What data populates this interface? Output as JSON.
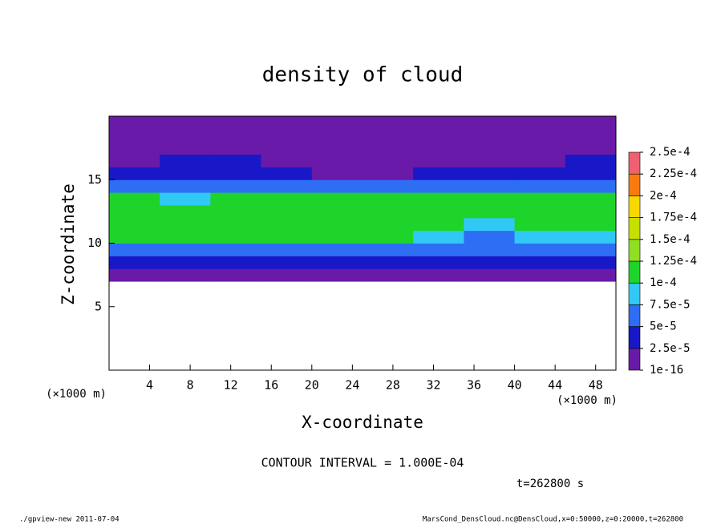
{
  "chart_data": {
    "type": "contour",
    "title": "density of cloud",
    "x_label": "X-coordinate",
    "y_label": "Z-coordinate",
    "x_unit": "(×1000 m)",
    "y_unit": "(×1000 m)",
    "xlim": [
      0,
      50
    ],
    "ylim": [
      0,
      20
    ],
    "xticks": [
      4,
      8,
      12,
      16,
      20,
      24,
      28,
      32,
      36,
      40,
      44,
      48
    ],
    "yticks": [
      5,
      10,
      15
    ],
    "x_bins": [
      0,
      5,
      10,
      15,
      20,
      25,
      30,
      35,
      40,
      45,
      50
    ],
    "z_bins": [
      7,
      8,
      9,
      10,
      11,
      12,
      13,
      14,
      15,
      16,
      17,
      18,
      19,
      20
    ],
    "values": [
      [
        2e-05,
        2e-05,
        2e-05,
        2e-05,
        2e-05,
        2e-05,
        2e-05,
        2e-05,
        2e-05,
        2e-05
      ],
      [
        4e-05,
        4e-05,
        4e-05,
        4e-05,
        4e-05,
        4e-05,
        3e-05,
        3e-05,
        4e-05,
        4e-05
      ],
      [
        7e-05,
        7e-05,
        7e-05,
        7e-05,
        7e-05,
        7e-05,
        6e-05,
        5e-05,
        6e-05,
        7e-05
      ],
      [
        0.00011,
        0.0001,
        0.0001,
        0.0001,
        0.0001,
        0.0001,
        9e-05,
        6e-05,
        8e-05,
        8e-05
      ],
      [
        0.00012,
        0.00012,
        0.00011,
        0.00012,
        0.00012,
        0.00011,
        0.0001,
        8e-05,
        0.0001,
        0.00011
      ],
      [
        0.00012,
        0.00011,
        0.00012,
        0.00012,
        0.00012,
        0.00011,
        0.00011,
        0.0001,
        0.00011,
        0.00012
      ],
      [
        0.0001,
        9e-05,
        0.0001,
        0.0001,
        0.0001,
        0.0001,
        0.0001,
        0.0001,
        0.0001,
        0.00011
      ],
      [
        6e-05,
        6e-05,
        6e-05,
        5e-05,
        5e-05,
        6e-05,
        7e-05,
        7e-05,
        6e-05,
        6e-05
      ],
      [
        3e-05,
        4e-05,
        4e-05,
        3e-05,
        2e-05,
        2e-05,
        3e-05,
        3e-05,
        4e-05,
        4e-05
      ],
      [
        2e-05,
        3e-05,
        3e-05,
        2e-05,
        1e-05,
        1e-05,
        1e-05,
        2e-05,
        2e-05,
        3e-05
      ],
      [
        2e-05,
        2e-05,
        2e-05,
        1e-05,
        5e-06,
        5e-06,
        5e-06,
        1e-05,
        1e-05,
        2e-05
      ],
      [
        1e-05,
        1e-05,
        1e-05,
        1e-05,
        1e-05,
        1e-05,
        1e-05,
        1e-05,
        1e-05,
        1e-05
      ],
      [
        5e-06,
        5e-06,
        5e-06,
        5e-06,
        5e-06,
        5e-06,
        5e-06,
        5e-06,
        5e-06,
        5e-06
      ]
    ],
    "colorbar_ticks": [
      1e-16,
      {
        "value": 2.5e-05,
        "label": "2.5e-5"
      },
      {
        "value": 5e-05,
        "label": "5e-5"
      },
      {
        "value": 7.5e-05,
        "label": "7.5e-5"
      },
      {
        "value": 0.0001,
        "label": "1e-4"
      },
      {
        "value": 0.000125,
        "label": "1.25e-4"
      },
      {
        "value": 0.00015,
        "label": "1.5e-4"
      },
      {
        "value": 0.000175,
        "label": "1.75e-4"
      },
      {
        "value": 0.0002,
        "label": "2e-4"
      },
      {
        "value": 0.000225,
        "label": "2.25e-4"
      },
      {
        "value": 0.00025,
        "label": "2.5e-4"
      }
    ],
    "colorbar_colors": [
      "#6a1aa8",
      "#1818c8",
      "#2d6ef5",
      "#30c8f4",
      "#1ed42a",
      "#8ee020",
      "#c8e000",
      "#f8d800",
      "#f87a10",
      "#f06070"
    ],
    "contour_note": "CONTOUR INTERVAL = 1.000E-04",
    "time_label": "t=262800 s",
    "footer_left": "./gpview-new  2011-07-04",
    "footer_right": "MarsCond_DensCloud.nc@DensCloud,x=0:50000,z=0:20000,t=262800"
  }
}
